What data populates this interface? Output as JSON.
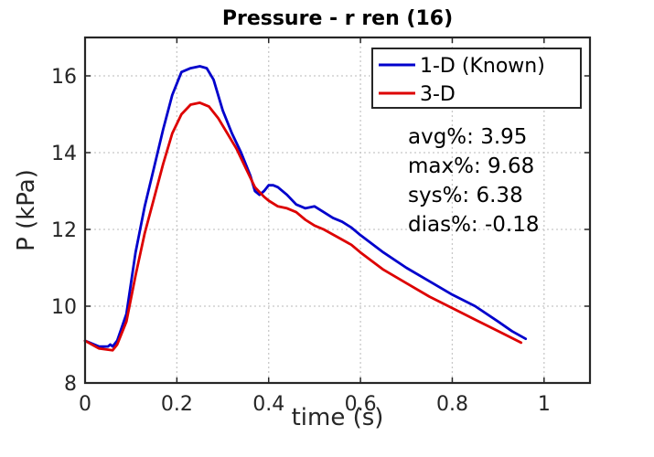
{
  "chart_data": {
    "type": "line",
    "title": "Pressure - r ren (16)",
    "xlabel": "time (s)",
    "ylabel": "P (kPa)",
    "xlim": [
      0,
      1.1
    ],
    "ylim": [
      8,
      17
    ],
    "xticks": [
      0,
      0.2,
      0.4,
      0.6,
      0.8,
      1
    ],
    "xtick_labels": [
      "0",
      "0.2",
      "0.4",
      "0.6",
      "0.8",
      "1"
    ],
    "yticks": [
      8,
      10,
      12,
      14,
      16
    ],
    "ytick_labels": [
      "8",
      "10",
      "12",
      "14",
      "16"
    ],
    "grid": true,
    "legend_position": "top-right",
    "series": [
      {
        "name": "1-D (Known)",
        "color": "#0000cc",
        "x": [
          0,
          0.03,
          0.05,
          0.055,
          0.06,
          0.07,
          0.09,
          0.11,
          0.13,
          0.15,
          0.17,
          0.19,
          0.21,
          0.23,
          0.25,
          0.265,
          0.28,
          0.3,
          0.32,
          0.34,
          0.36,
          0.37,
          0.38,
          0.39,
          0.4,
          0.41,
          0.42,
          0.44,
          0.46,
          0.48,
          0.5,
          0.52,
          0.54,
          0.56,
          0.58,
          0.6,
          0.65,
          0.7,
          0.75,
          0.8,
          0.85,
          0.9,
          0.93,
          0.96
        ],
        "y": [
          9.1,
          8.95,
          8.95,
          9.0,
          8.95,
          9.1,
          9.8,
          11.4,
          12.6,
          13.6,
          14.6,
          15.5,
          16.1,
          16.2,
          16.25,
          16.2,
          15.9,
          15.1,
          14.5,
          14.0,
          13.4,
          13.0,
          12.9,
          13.0,
          13.15,
          13.15,
          13.1,
          12.9,
          12.65,
          12.55,
          12.6,
          12.45,
          12.3,
          12.2,
          12.05,
          11.85,
          11.4,
          11.0,
          10.65,
          10.3,
          10.0,
          9.6,
          9.35,
          9.15
        ]
      },
      {
        "name": "3-D",
        "color": "#dd0000",
        "x": [
          0,
          0.03,
          0.06,
          0.07,
          0.09,
          0.11,
          0.13,
          0.15,
          0.17,
          0.19,
          0.21,
          0.23,
          0.25,
          0.27,
          0.29,
          0.31,
          0.33,
          0.35,
          0.37,
          0.39,
          0.4,
          0.42,
          0.44,
          0.46,
          0.48,
          0.5,
          0.52,
          0.55,
          0.58,
          0.6,
          0.65,
          0.7,
          0.75,
          0.8,
          0.85,
          0.9,
          0.95
        ],
        "y": [
          9.1,
          8.9,
          8.85,
          9.0,
          9.6,
          10.8,
          11.9,
          12.8,
          13.7,
          14.5,
          15.0,
          15.25,
          15.3,
          15.2,
          14.9,
          14.5,
          14.1,
          13.6,
          13.1,
          12.85,
          12.75,
          12.6,
          12.55,
          12.45,
          12.25,
          12.1,
          12.0,
          11.8,
          11.6,
          11.4,
          10.95,
          10.6,
          10.25,
          9.95,
          9.65,
          9.35,
          9.05
        ]
      }
    ],
    "annotations": [
      "avg%: 3.95",
      "max%: 9.68",
      "sys%: 6.38",
      "dias%: -0.18"
    ]
  }
}
